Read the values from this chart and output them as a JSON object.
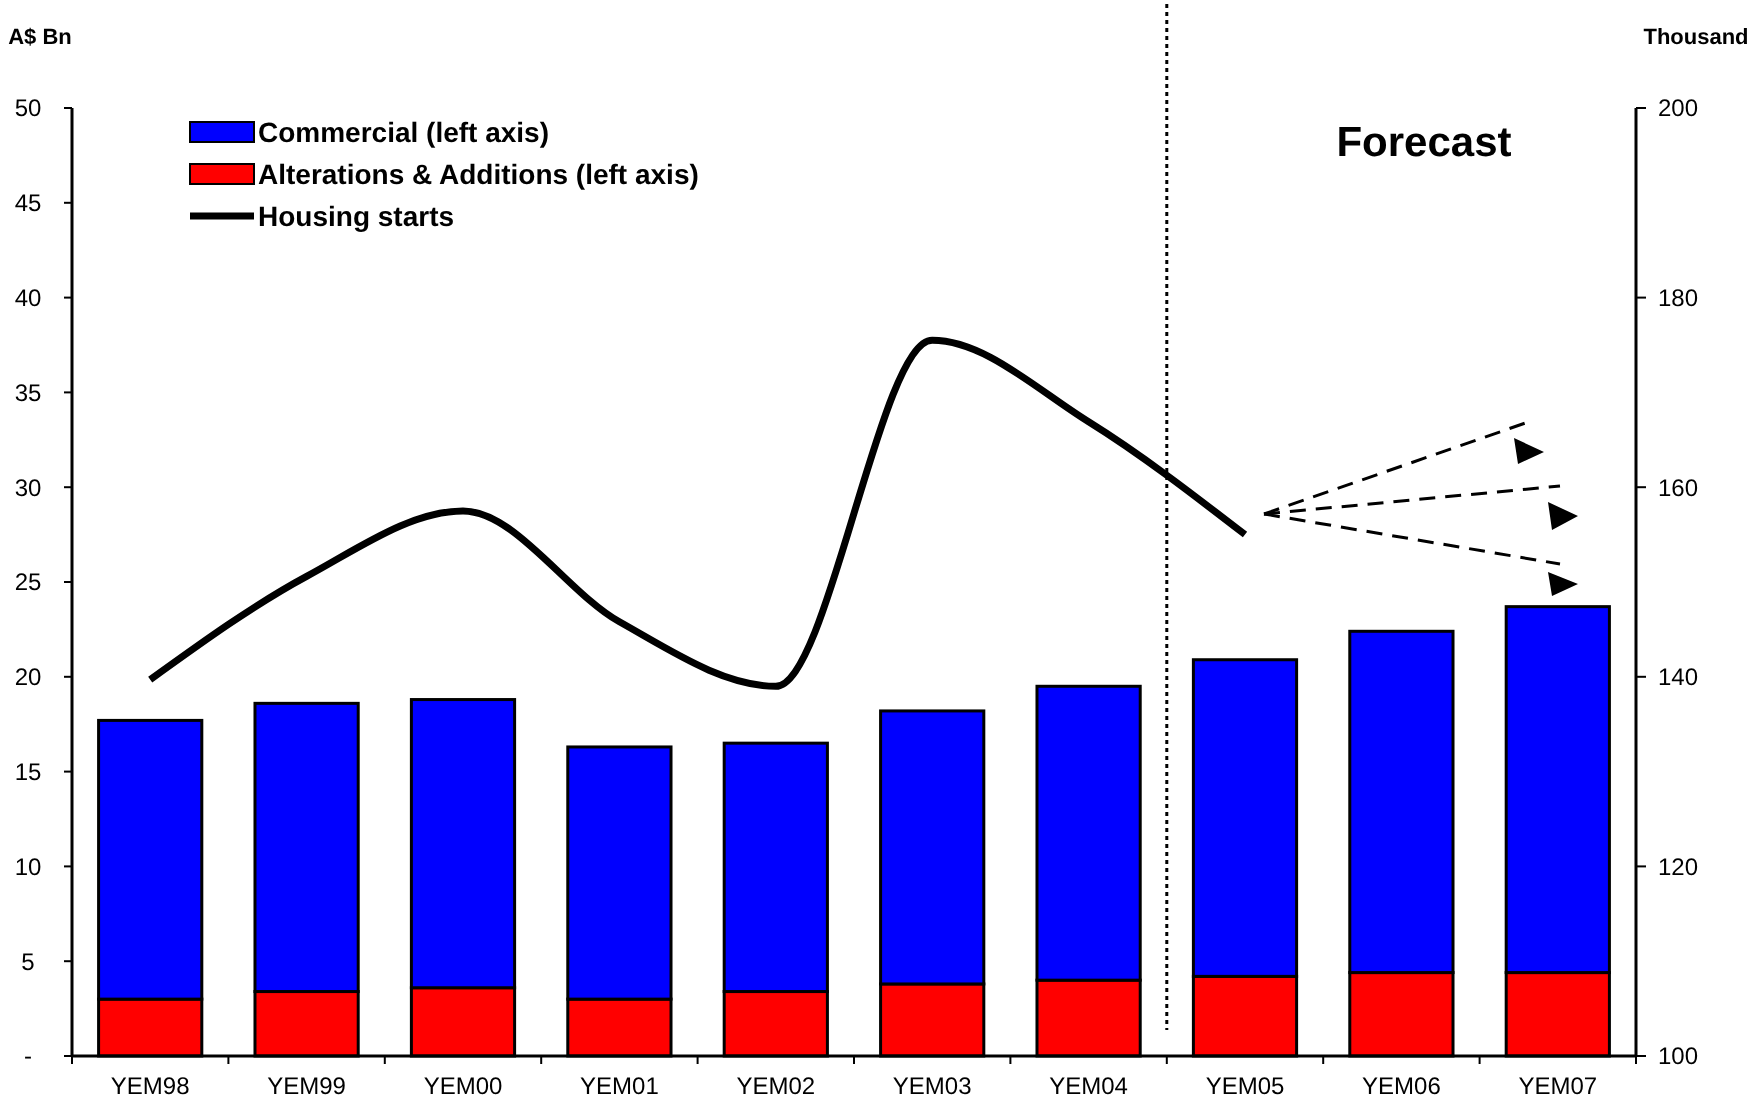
{
  "chart_data": {
    "type": "bar",
    "stacked": true,
    "categories": [
      "YEM98",
      "YEM99",
      "YEM00",
      "YEM01",
      "YEM02",
      "YEM03",
      "YEM04",
      "YEM05",
      "YEM06",
      "YEM07"
    ],
    "series": [
      {
        "name": "Alterations & Additions (left axis)",
        "color": "#ff0000",
        "values": [
          3.0,
          3.4,
          3.6,
          3.0,
          3.4,
          3.8,
          4.0,
          4.2,
          4.4,
          4.4
        ]
      },
      {
        "name": "Commercial (left axis)",
        "color": "#0000ff",
        "values": [
          14.7,
          15.2,
          15.2,
          13.3,
          13.1,
          14.4,
          15.5,
          16.7,
          18.0,
          19.3
        ]
      },
      {
        "name": "Housing starts",
        "type": "line",
        "axis": "y2",
        "color": "#000000",
        "values": [
          139.7,
          150.6,
          157.5,
          145.8,
          139.0,
          175.5,
          166.9,
          155.0,
          null,
          null
        ]
      }
    ],
    "ylabel": "A$ Bn",
    "y2label": "Thousand",
    "ylim": [
      0,
      50
    ],
    "yticks": [
      {
        "value": 0,
        "label": "-"
      },
      5,
      10,
      15,
      20,
      25,
      30,
      35,
      40,
      45,
      50
    ],
    "y2lim": [
      100,
      200
    ],
    "y2ticks": [
      100,
      120,
      140,
      160,
      180,
      200
    ],
    "annotations": [
      "Forecast"
    ],
    "legend": "top left",
    "grid": false,
    "line_style": "solid"
  }
}
